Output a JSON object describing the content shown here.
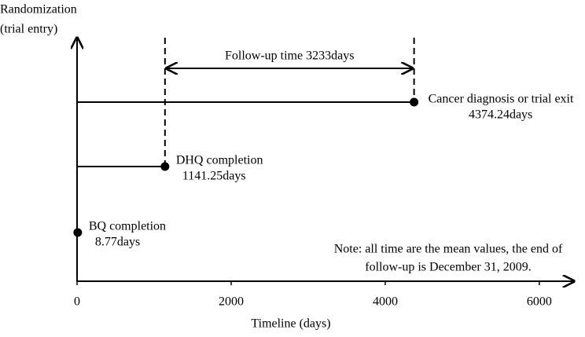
{
  "chart_data": {
    "type": "timeline",
    "y_label": [
      "Randomization",
      "(trial entry)"
    ],
    "x_label": "Timeline (days)",
    "xlim": [
      0,
      6450
    ],
    "xticks": [
      0,
      2000,
      4000,
      6000
    ],
    "events": [
      {
        "name": "BQ completion",
        "x": 8.77,
        "label": "8.77days"
      },
      {
        "name": "DHQ completion",
        "x": 1141.25,
        "label": "1141.25days"
      },
      {
        "name": "Cancer diagnosis or trial exit",
        "x": 4374.24,
        "label": "4374.24days"
      }
    ],
    "follow_up": "Follow-up time 3233days",
    "note": [
      "Note: all time are the mean values, the end of",
      "follow-up is December 31, 2009."
    ]
  }
}
